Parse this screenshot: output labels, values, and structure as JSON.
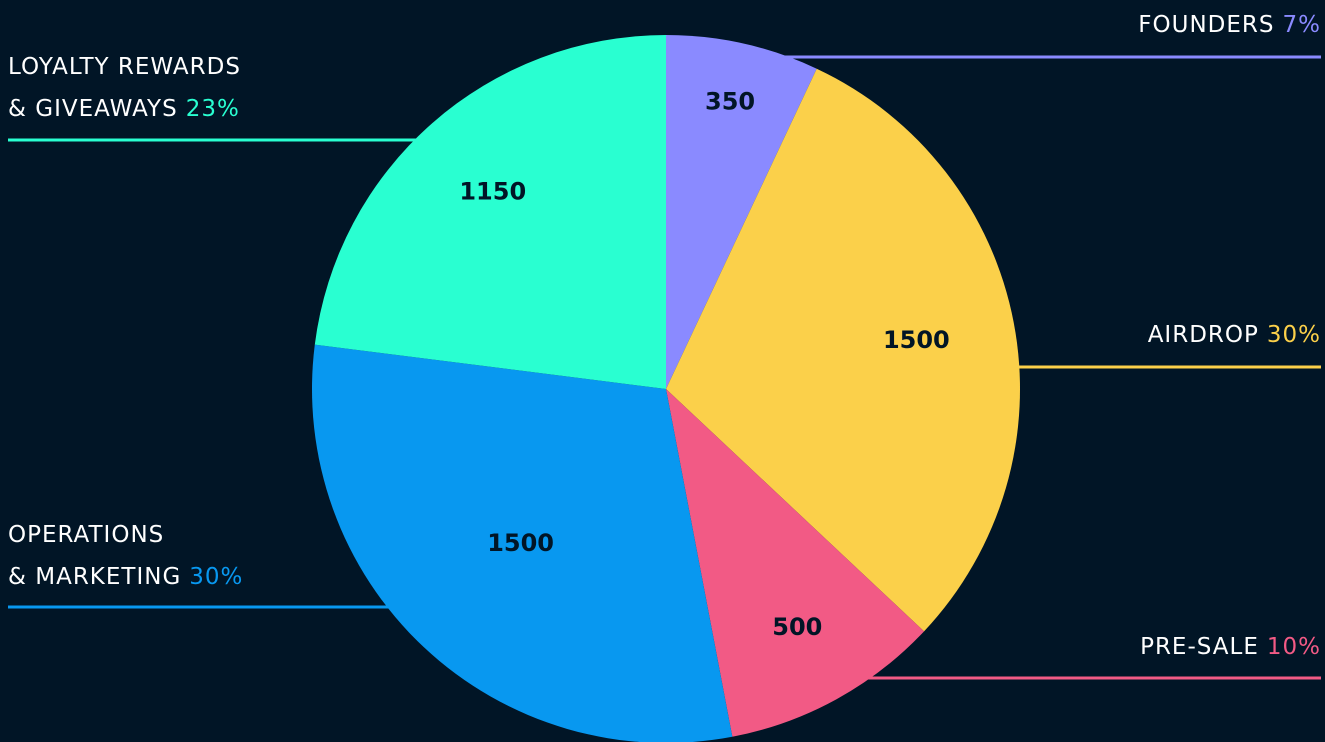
{
  "colors": {
    "background": "#011526"
  },
  "chart_data": {
    "type": "pie",
    "start_angle_deg": 0,
    "direction": "clockwise",
    "slices": [
      {
        "label": "FOUNDERS",
        "value": 350,
        "percent": "7%",
        "color": "#8a8aff"
      },
      {
        "label": "AIRDROP",
        "value": 1500,
        "percent": "30%",
        "color": "#fbd04a"
      },
      {
        "label": "PRE-SALE",
        "value": 500,
        "percent": "10%",
        "color": "#f25a85"
      },
      {
        "label": "OPERATIONS & MARKETING",
        "label_lines": [
          "OPERATIONS",
          "& MARKETING"
        ],
        "value": 1500,
        "percent": "30%",
        "color": "#0898f0"
      },
      {
        "label": "LOYALTY REWARDS & GIVEAWAYS",
        "label_lines": [
          "LOYALTY REWARDS",
          "& GIVEAWAYS"
        ],
        "value": 1150,
        "percent": "23%",
        "color": "#29ffd1"
      }
    ]
  }
}
